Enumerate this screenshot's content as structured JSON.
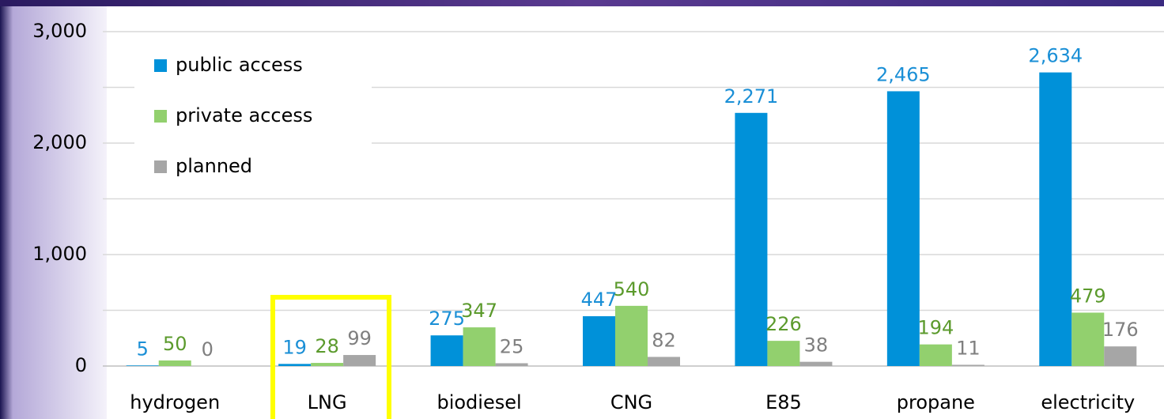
{
  "chart_data": {
    "type": "bar",
    "categories": [
      "hydrogen",
      "LNG",
      "biodiesel",
      "CNG",
      "E85",
      "propane",
      "electricity"
    ],
    "series": [
      {
        "name": "public access",
        "color": "#0091d9",
        "label_color": "#1a8fd6",
        "values": [
          5,
          19,
          275,
          447,
          2271,
          2465,
          2634
        ]
      },
      {
        "name": "private access",
        "color": "#92d06e",
        "label_color": "#5b9a2c",
        "values": [
          50,
          28,
          347,
          540,
          226,
          194,
          479
        ]
      },
      {
        "name": "planned",
        "color": "#a6a6a6",
        "label_color": "#7f7f7f",
        "values": [
          0,
          99,
          25,
          82,
          38,
          11,
          176
        ]
      }
    ],
    "ylim": [
      0,
      3000
    ],
    "yticks": [
      0,
      {
        "value": 1000,
        "label": "1,000"
      },
      {
        "value": 2000,
        "label": "2,000"
      },
      {
        "value": 3000,
        "label": "3,000"
      }
    ],
    "minor_grid": [
      500,
      1500,
      2500
    ],
    "grid": true,
    "legend": "upper left",
    "value_labels": [
      [
        null,
        null,
        null,
        null,
        "2,271",
        "2,465",
        "2,634"
      ],
      null,
      null
    ]
  }
}
